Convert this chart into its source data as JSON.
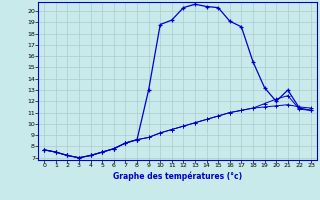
{
  "xlabel": "Graphe des températures (°c)",
  "background_color": "#c8eaea",
  "line_color": "#0000cc",
  "grid_color": "#aacccc",
  "xlim": [
    -0.5,
    23.5
  ],
  "ylim": [
    6.8,
    20.8
  ],
  "xticks": [
    0,
    1,
    2,
    3,
    4,
    5,
    6,
    7,
    8,
    9,
    10,
    11,
    12,
    13,
    14,
    15,
    16,
    17,
    18,
    19,
    20,
    21,
    22,
    23
  ],
  "yticks": [
    7,
    8,
    9,
    10,
    11,
    12,
    13,
    14,
    15,
    16,
    17,
    18,
    19,
    20
  ],
  "line1_x": [
    0,
    1,
    2,
    3,
    4,
    5,
    6,
    7,
    8,
    9,
    10,
    11,
    12,
    13,
    14,
    15,
    16,
    17,
    18,
    19,
    20,
    21,
    22,
    23
  ],
  "line1_y": [
    7.7,
    7.5,
    7.2,
    7.0,
    7.2,
    7.5,
    7.8,
    8.3,
    8.6,
    13.0,
    18.8,
    19.2,
    20.3,
    20.6,
    20.4,
    20.3,
    19.1,
    18.6,
    15.5,
    13.2,
    12.0,
    13.0,
    11.4,
    11.2
  ],
  "line2_x": [
    0,
    1,
    2,
    3,
    4,
    5,
    6,
    7,
    8,
    9,
    10,
    11,
    12,
    13,
    14,
    15,
    16,
    17,
    18,
    19,
    20,
    21,
    22,
    23
  ],
  "line2_y": [
    7.7,
    7.5,
    7.2,
    7.0,
    7.2,
    7.5,
    7.8,
    8.3,
    8.6,
    8.8,
    9.2,
    9.5,
    9.8,
    10.1,
    10.4,
    10.7,
    11.0,
    11.2,
    11.4,
    11.5,
    11.6,
    11.7,
    11.5,
    11.4
  ],
  "line3_x": [
    0,
    1,
    2,
    3,
    4,
    5,
    6,
    7,
    8,
    9,
    10,
    11,
    12,
    13,
    14,
    15,
    16,
    17,
    18,
    19,
    20,
    21,
    22,
    23
  ],
  "line3_y": [
    7.7,
    7.5,
    7.2,
    7.0,
    7.2,
    7.5,
    7.8,
    8.3,
    8.6,
    8.8,
    9.2,
    9.5,
    9.8,
    10.1,
    10.4,
    10.7,
    11.0,
    11.2,
    11.4,
    11.8,
    12.2,
    12.5,
    11.3,
    11.2
  ]
}
